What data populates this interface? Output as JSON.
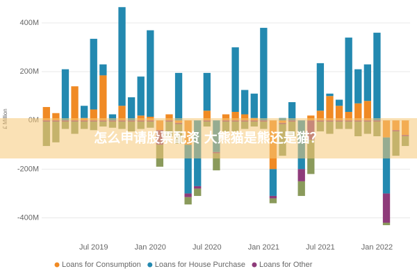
{
  "chart_data": {
    "type": "stacked-bar",
    "y_label": "£ Million",
    "categories": [
      null,
      null,
      null,
      null,
      null,
      "Jul 2019",
      null,
      null,
      null,
      null,
      null,
      "Jan 2020",
      null,
      null,
      null,
      null,
      null,
      "Jul 2020",
      null,
      null,
      null,
      null,
      null,
      "Jan 2021",
      null,
      null,
      null,
      null,
      null,
      "Jul 2021",
      null,
      null,
      null,
      null,
      null,
      "Jan 2022",
      null,
      null,
      null
    ],
    "series": [
      {
        "name": "Loans for Consumption",
        "color": "#f08a24",
        "values": [
          55,
          30,
          0,
          140,
          10,
          45,
          185,
          0,
          60,
          0,
          20,
          15,
          -40,
          25,
          -10,
          -100,
          0,
          40,
          0,
          25,
          35,
          25,
          10,
          0,
          -200,
          -10,
          0,
          0,
          20,
          40,
          100,
          60,
          35,
          70,
          80,
          0,
          -70,
          -40,
          -60
        ]
      },
      {
        "name": "Loans for House Purchase",
        "color": "#2389b0",
        "values": [
          0,
          0,
          210,
          0,
          50,
          290,
          45,
          25,
          405,
          95,
          160,
          355,
          0,
          0,
          195,
          -200,
          -270,
          155,
          -130,
          0,
          265,
          100,
          100,
          380,
          -110,
          10,
          75,
          -200,
          0,
          195,
          10,
          25,
          305,
          140,
          150,
          360,
          -230,
          0,
          0
        ]
      },
      {
        "name": "Loans for Other",
        "color": "#8e3b7a",
        "values": [
          -5,
          -5,
          -5,
          -5,
          -5,
          -5,
          -5,
          -5,
          -5,
          -5,
          -5,
          -5,
          -60,
          -5,
          -5,
          -15,
          -10,
          -5,
          -5,
          -5,
          -5,
          -5,
          -5,
          -5,
          -10,
          -5,
          -5,
          -50,
          -80,
          -5,
          -5,
          -5,
          -5,
          -5,
          -5,
          -5,
          -120,
          -5,
          -5
        ]
      },
      {
        "color": "#8a9a5b",
        "values": [
          -100,
          -85,
          -30,
          -50,
          -30,
          -35,
          -20,
          -25,
          -30,
          -40,
          -30,
          -25,
          -90,
          -60,
          -80,
          -30,
          -30,
          -20,
          -70,
          -40,
          -40,
          -30,
          -20,
          -30,
          -20,
          -130,
          -60,
          -60,
          -140,
          -40,
          -50,
          -30,
          -30,
          -60,
          -50,
          -60,
          -10,
          -100,
          -40
        ]
      }
    ],
    "ylim": [
      -450,
      480
    ],
    "yticks": [
      {
        "value": -400,
        "label": "-400M"
      },
      {
        "value": -200,
        "label": "-200M"
      },
      {
        "value": 0,
        "label": "0M"
      },
      {
        "value": 200,
        "label": "200M"
      },
      {
        "value": 400,
        "label": "400M"
      }
    ],
    "grid": true
  },
  "banner": {
    "text": "怎么申请股票配资 大熊猫是熊还是猫？"
  }
}
